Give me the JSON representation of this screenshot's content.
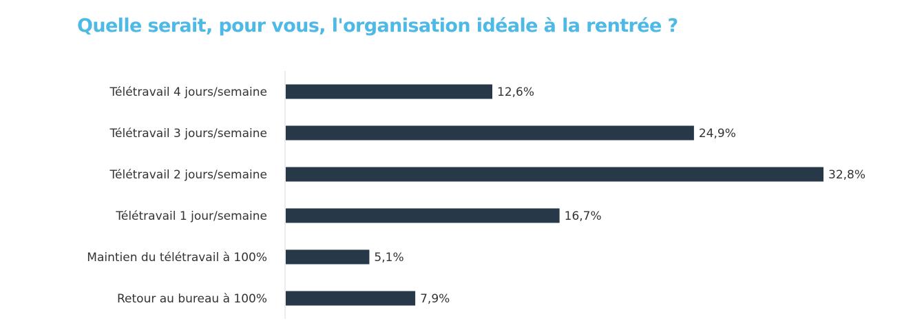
{
  "chart_data": {
    "type": "bar",
    "orientation": "horizontal",
    "title": "Quelle serait, pour vous, l'organisation idéale à la rentrée ?",
    "categories": [
      "Télétravail 4 jours/semaine",
      "Télétravail 3 jours/semaine",
      "Télétravail 2 jours/semaine",
      "Télétravail 1 jour/semaine",
      "Maintien du télétravail à 100%",
      "Retour au bureau à 100%"
    ],
    "values": [
      12.6,
      24.9,
      32.8,
      16.7,
      5.1,
      7.9
    ],
    "value_labels": [
      "12,6%",
      "24,9%",
      "32,8%",
      "16,7%",
      "5,1%",
      "7,9%"
    ],
    "xlim": [
      0,
      32.8
    ],
    "grid": false,
    "legend": "none",
    "colors": {
      "bar": "#273849",
      "title": "#4fb9e6",
      "axis": "#d9d9d9",
      "text": "#333333"
    }
  }
}
